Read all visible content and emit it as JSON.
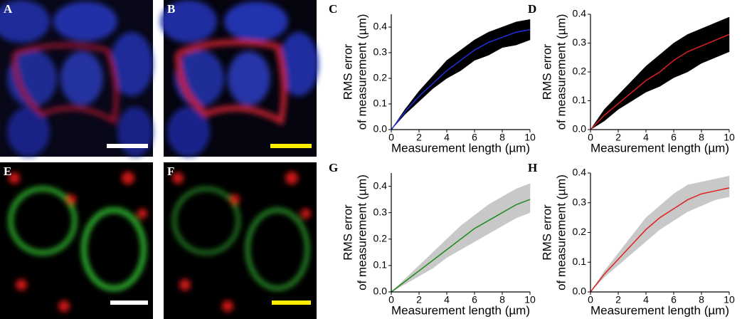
{
  "image_panels": [
    {
      "label": "A"
    },
    {
      "label": "B"
    },
    {
      "label": "E"
    },
    {
      "label": "F"
    }
  ],
  "chart_data": [
    {
      "type": "line",
      "label": "C",
      "xlabel": "Measurement length (µm)",
      "ylabel": [
        "RMS error",
        "of measurement (µm)"
      ],
      "x": [
        0,
        1,
        2,
        3,
        4,
        5,
        6,
        7,
        8,
        9,
        10
      ],
      "xlim": [
        0,
        10
      ],
      "xticks": [
        0,
        2,
        4,
        6,
        8,
        10
      ],
      "ylim": [
        0,
        0.45
      ],
      "yticks": [
        {
          "value": 0,
          "label": "0.0"
        },
        0.1,
        0.2,
        0.3,
        0.4
      ],
      "series": [
        {
          "color": "#2030e0",
          "values": [
            0,
            0.07,
            0.13,
            0.18,
            0.23,
            0.27,
            0.31,
            0.34,
            0.36,
            0.38,
            0.39
          ]
        }
      ],
      "band": {
        "color": "#000000",
        "upper": [
          0,
          0.08,
          0.15,
          0.21,
          0.27,
          0.31,
          0.35,
          0.38,
          0.4,
          0.42,
          0.43
        ],
        "lower": [
          0,
          0.06,
          0.11,
          0.16,
          0.2,
          0.23,
          0.27,
          0.29,
          0.32,
          0.33,
          0.35
        ]
      }
    },
    {
      "type": "line",
      "label": "D",
      "xlabel": "Measurement length (µm)",
      "ylabel": [
        "RMS error",
        "of measurement (µm)"
      ],
      "x": [
        0,
        1,
        2,
        3,
        4,
        5,
        6,
        7,
        8,
        9,
        10
      ],
      "xlim": [
        0,
        10
      ],
      "xticks": [
        0,
        2,
        4,
        6,
        8,
        10
      ],
      "ylim": [
        0,
        0.4
      ],
      "yticks": [
        {
          "value": 0,
          "label": "0.0"
        },
        0.1,
        0.2,
        0.3,
        0.4
      ],
      "series": [
        {
          "color": "#e02020",
          "values": [
            0,
            0.05,
            0.09,
            0.13,
            0.17,
            0.2,
            0.24,
            0.27,
            0.29,
            0.31,
            0.33
          ]
        }
      ],
      "band": {
        "color": "#000000",
        "upper": [
          0,
          0.07,
          0.12,
          0.17,
          0.22,
          0.26,
          0.3,
          0.33,
          0.35,
          0.37,
          0.39
        ],
        "lower": [
          0,
          0.03,
          0.07,
          0.1,
          0.13,
          0.15,
          0.18,
          0.2,
          0.23,
          0.25,
          0.27
        ]
      }
    },
    {
      "type": "line",
      "label": "G",
      "xlabel": "Measurement length (µm)",
      "ylabel": [
        "RMS error",
        "of measurement (µm)"
      ],
      "x": [
        0,
        1,
        2,
        3,
        4,
        5,
        6,
        7,
        8,
        9,
        10
      ],
      "xlim": [
        0,
        10
      ],
      "xticks": [
        0,
        2,
        4,
        6,
        8,
        10
      ],
      "ylim": [
        0,
        0.45
      ],
      "yticks": [
        {
          "value": 0,
          "label": "0.0"
        },
        0.1,
        0.2,
        0.3,
        0.4
      ],
      "series": [
        {
          "color": "#1e8a1e",
          "values": [
            0,
            0.04,
            0.08,
            0.12,
            0.16,
            0.2,
            0.24,
            0.27,
            0.3,
            0.33,
            0.35
          ]
        }
      ],
      "band": {
        "color": "#c8c8c8",
        "upper": [
          0,
          0.05,
          0.1,
          0.15,
          0.2,
          0.25,
          0.29,
          0.33,
          0.36,
          0.39,
          0.41
        ],
        "lower": [
          0,
          0.03,
          0.06,
          0.09,
          0.13,
          0.16,
          0.19,
          0.22,
          0.25,
          0.28,
          0.3
        ]
      }
    },
    {
      "type": "line",
      "label": "H",
      "xlabel": "Measurement length (µm)",
      "ylabel": [
        "RMS error",
        "of measurement (µm)"
      ],
      "x": [
        0,
        1,
        2,
        3,
        4,
        5,
        6,
        7,
        8,
        9,
        10
      ],
      "xlim": [
        0,
        10
      ],
      "xticks": [
        0,
        2,
        4,
        6,
        8,
        10
      ],
      "ylim": [
        0,
        0.4
      ],
      "yticks": [
        {
          "value": 0,
          "label": "0.0"
        },
        0.1,
        0.2,
        0.3,
        0.4
      ],
      "series": [
        {
          "color": "#e02020",
          "values": [
            0,
            0.06,
            0.11,
            0.16,
            0.21,
            0.25,
            0.28,
            0.31,
            0.33,
            0.34,
            0.35
          ]
        }
      ],
      "band": {
        "color": "#c8c8c8",
        "upper": [
          0,
          0.07,
          0.13,
          0.19,
          0.25,
          0.29,
          0.33,
          0.36,
          0.37,
          0.38,
          0.39
        ],
        "lower": [
          0,
          0.05,
          0.09,
          0.13,
          0.17,
          0.21,
          0.24,
          0.27,
          0.29,
          0.31,
          0.32
        ]
      }
    }
  ]
}
